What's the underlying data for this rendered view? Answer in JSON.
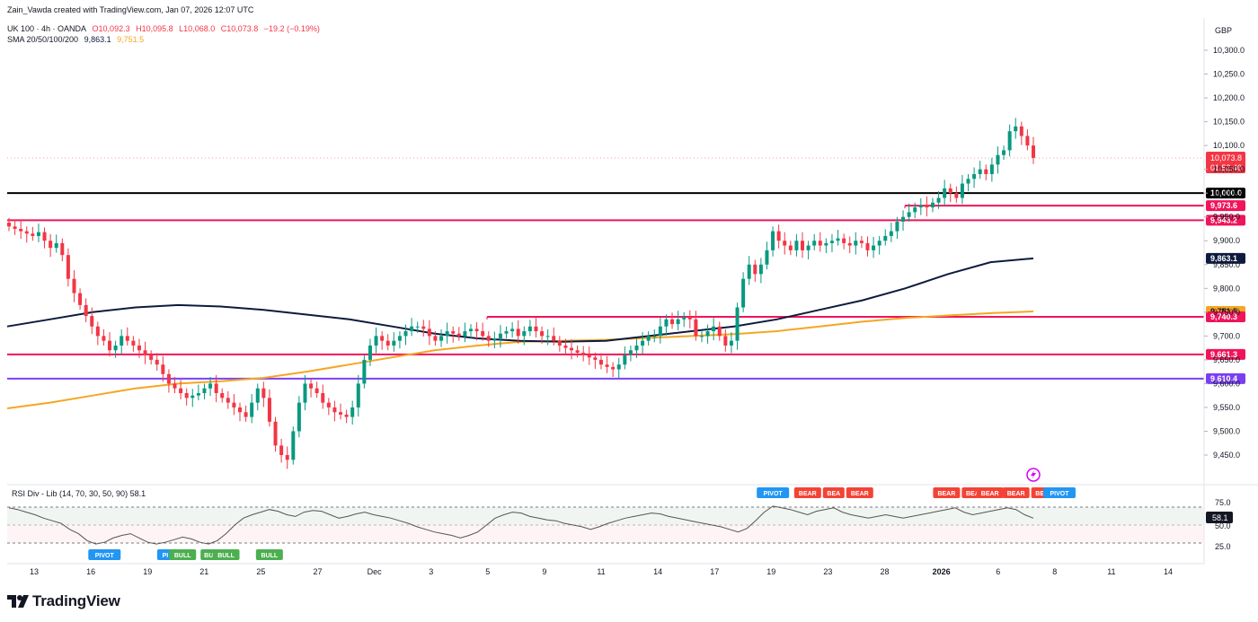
{
  "header": {
    "credit": "Zain_Vawda created with TradingView.com, Jan 07, 2026 12:07 UTC",
    "symbol": "UK 100 · 4h · OANDA",
    "open": "O10,092.3",
    "high": "H10,095.8",
    "low": "L10,068.0",
    "close": "C10,073.8",
    "change": "−19.2 (−0.19%)",
    "sma_label": "SMA 20/50/100/200",
    "sma_value_1": "9,863.1",
    "sma_value_2": "9,751.5",
    "currency": "GBP",
    "rsi_label": "RSI Div - Lib (14, 70, 30, 50, 90)",
    "rsi_value": "58.1"
  },
  "colors": {
    "up": "#089981",
    "down": "#f23645",
    "sma_dark": "#0d1b3e",
    "sma_orange": "#f5a623",
    "level_line": "#f0145a",
    "purple": "#7b3ff2",
    "pivot": "#2196f3",
    "bull": "#4caf50",
    "bear": "#f44336"
  },
  "chart_data": {
    "type": "candlestick",
    "title": "UK 100 · 4h · OANDA",
    "y_axis": {
      "unit": "GBP",
      "min": 9400,
      "max": 10350,
      "ticks": [
        9450,
        9500,
        9550,
        9600,
        9650,
        9700,
        9750,
        9800,
        9850,
        9900,
        9950,
        10000,
        10050,
        10100,
        10150,
        10200,
        10250,
        10300
      ]
    },
    "y_tick_labels": [
      "9,450.0",
      "9,500.0",
      "9,550.0",
      "9,600.0",
      "9,650.0",
      "9,700.0",
      "9,750.0",
      "9,800.0",
      "9,850.0",
      "9,900.0",
      "9,950.0",
      "10,000.0",
      "10,050.0",
      "10,100.0",
      "10,150.0",
      "10,200.0",
      "10,250.0",
      "10,300.0"
    ],
    "x_tick_labels": [
      "13",
      "16",
      "19",
      "21",
      "25",
      "27",
      "Dec",
      "3",
      "5",
      "9",
      "11",
      "14",
      "17",
      "19",
      "23",
      "28",
      "2026",
      "6",
      "8",
      "11",
      "14"
    ],
    "series_close": [
      9930,
      9925,
      9920,
      9915,
      9910,
      9918,
      9900,
      9885,
      9895,
      9870,
      9820,
      9790,
      9765,
      9742,
      9720,
      9700,
      9690,
      9670,
      9680,
      9700,
      9690,
      9680,
      9670,
      9660,
      9650,
      9640,
      9620,
      9600,
      9590,
      9580,
      9570,
      9575,
      9580,
      9590,
      9600,
      9580,
      9570,
      9560,
      9550,
      9540,
      9530,
      9560,
      9590,
      9570,
      9520,
      9470,
      9450,
      9440,
      9500,
      9560,
      9600,
      9590,
      9580,
      9560,
      9550,
      9540,
      9535,
      9530,
      9550,
      9600,
      9650,
      9680,
      9700,
      9690,
      9680,
      9690,
      9700,
      9710,
      9720,
      9720,
      9715,
      9700,
      9690,
      9700,
      9710,
      9705,
      9700,
      9710,
      9715,
      9710,
      9700,
      9690,
      9695,
      9705,
      9710,
      9715,
      9700,
      9710,
      9720,
      9710,
      9700,
      9700,
      9690,
      9680,
      9675,
      9670,
      9665,
      9660,
      9655,
      9650,
      9640,
      9635,
      9630,
      9640,
      9660,
      9670,
      9680,
      9690,
      9700,
      9700,
      9720,
      9735,
      9725,
      9735,
      9740,
      9735,
      9700,
      9700,
      9710,
      9720,
      9700,
      9680,
      9690,
      9760,
      9820,
      9850,
      9830,
      9850,
      9880,
      9920,
      9900,
      9890,
      9880,
      9900,
      9880,
      9890,
      9900,
      9890,
      9895,
      9900,
      9905,
      9895,
      9890,
      9900,
      9895,
      9880,
      9890,
      9900,
      9910,
      9920,
      9940,
      9950,
      9960,
      9970,
      9975,
      9970,
      9980,
      9990,
      10010,
      10000,
      9990,
      10020,
      10030,
      10040,
      10050,
      10040,
      10060,
      10080,
      10090,
      10130,
      10140,
      10120,
      10100,
      10074
    ],
    "levels": [
      {
        "label": "10,000.0",
        "value": 10000
      },
      {
        "label": "9,973.6",
        "value": 9973.6
      },
      {
        "label": "9,943.2",
        "value": 9943.2
      },
      {
        "label": "9,863.1",
        "value": 9863.1
      },
      {
        "label": "9,751.5",
        "value": 9751.5
      },
      {
        "label": "9,740.3",
        "value": 9740.3
      },
      {
        "label": "9,661.3",
        "value": 9661.3
      },
      {
        "label": "9,610.4",
        "value": 9610.4
      }
    ],
    "current_price": {
      "label": "10,073.8",
      "countdown": "01:52:40",
      "value": 10073.8
    },
    "sma_dark": {
      "label": "9,863.1",
      "values": [
        9720,
        9735,
        9750,
        9760,
        9765,
        9762,
        9755,
        9745,
        9735,
        9720,
        9705,
        9695,
        9690,
        9688,
        9690,
        9700,
        9710,
        9720,
        9735,
        9755,
        9775,
        9800,
        9830,
        9855,
        9863
      ]
    },
    "sma_orange": {
      "label": "9,751.5",
      "values": [
        9548,
        9560,
        9575,
        9590,
        9600,
        9605,
        9612,
        9625,
        9640,
        9655,
        9670,
        9680,
        9688,
        9690,
        9692,
        9696,
        9700,
        9704,
        9710,
        9720,
        9730,
        9738,
        9743,
        9748,
        9751.5
      ]
    },
    "rsi": {
      "label": "RSI Div - Lib (14, 70, 30, 50, 90)",
      "current": "58.1",
      "ticks": [
        "75.0",
        "50.0",
        "25.0"
      ],
      "values": [
        70,
        68,
        65,
        62,
        58,
        55,
        52,
        45,
        40,
        32,
        28,
        30,
        35,
        38,
        40,
        35,
        30,
        28,
        30,
        33,
        36,
        34,
        30,
        28,
        32,
        40,
        50,
        58,
        62,
        65,
        68,
        66,
        62,
        60,
        65,
        67,
        66,
        62,
        58,
        60,
        63,
        65,
        62,
        60,
        58,
        55,
        52,
        48,
        45,
        42,
        40,
        38,
        35,
        38,
        42,
        50,
        58,
        62,
        65,
        64,
        60,
        58,
        56,
        55,
        52,
        50,
        48,
        45,
        48,
        52,
        55,
        58,
        60,
        62,
        64,
        63,
        60,
        58,
        56,
        54,
        52,
        50,
        48,
        45,
        42,
        46,
        55,
        65,
        72,
        70,
        68,
        65,
        62,
        66,
        68,
        70,
        65,
        62,
        60,
        58,
        60,
        62,
        60,
        58,
        60,
        62,
        64,
        66,
        68,
        70,
        65,
        62,
        64,
        66,
        68,
        70,
        68,
        62,
        58
      ],
      "labels": [
        {
          "text": "PIVOT",
          "type": "pivot",
          "pos": "below",
          "index": 11
        },
        {
          "text": "PI",
          "type": "pivot",
          "pos": "below",
          "index": 18
        },
        {
          "text": "BULL",
          "type": "bull",
          "pos": "below",
          "index": 20
        },
        {
          "text": "BU",
          "type": "bull",
          "pos": "below",
          "index": 23
        },
        {
          "text": "BULL",
          "type": "bull",
          "pos": "below",
          "index": 25
        },
        {
          "text": "BULL",
          "type": "bull",
          "pos": "below",
          "index": 30
        },
        {
          "text": "PIVOT",
          "type": "pivot",
          "pos": "above",
          "index": 88
        },
        {
          "text": "BEAR",
          "type": "bear",
          "pos": "above",
          "index": 92
        },
        {
          "text": "BEA",
          "type": "bear",
          "pos": "above",
          "index": 95
        },
        {
          "text": "BEAR",
          "type": "bear",
          "pos": "above",
          "index": 98
        },
        {
          "text": "BEAR",
          "type": "bear",
          "pos": "above",
          "index": 108
        },
        {
          "text": "BEA",
          "type": "bear",
          "pos": "above",
          "index": 111
        },
        {
          "text": "BEAR",
          "type": "bear",
          "pos": "above",
          "index": 113
        },
        {
          "text": "BEAR",
          "type": "bear",
          "pos": "above",
          "index": 116
        },
        {
          "text": "BEA",
          "type": "bear",
          "pos": "above",
          "index": 119
        },
        {
          "text": "PIVOT",
          "type": "pivot",
          "pos": "above",
          "index": 121
        }
      ]
    }
  },
  "branding": {
    "logo_text": "TradingView"
  }
}
